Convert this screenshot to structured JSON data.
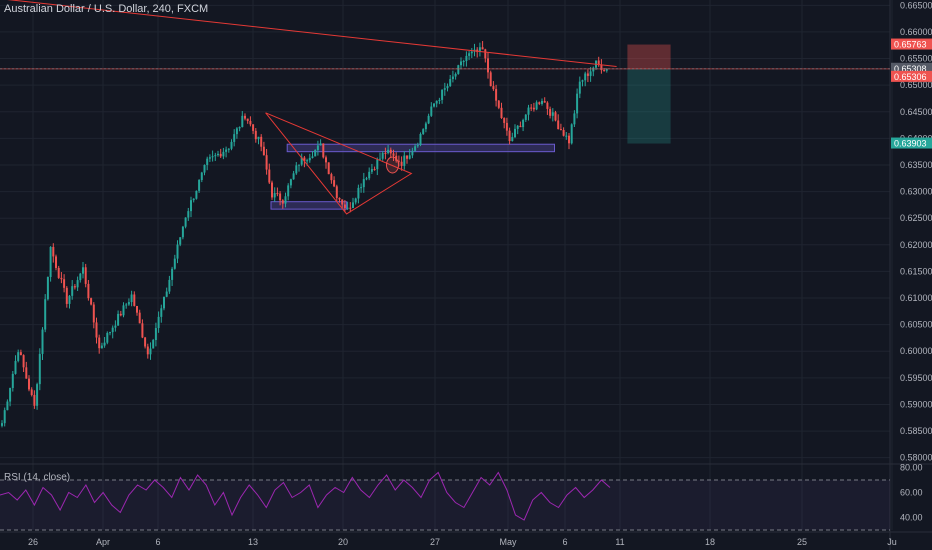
{
  "header": {
    "title": "Australian Dollar / U.S. Dollar, 240, FXCM"
  },
  "rsi": {
    "label": "RSI (14, close)"
  },
  "colors": {
    "background": "#131722",
    "grid": "#1f2430",
    "up": "#26a69a",
    "down": "#ef5350",
    "trendline": "#e53935",
    "zone": "#6a5acd",
    "rsi_line": "#9c27b0",
    "axis_text": "#b2b5be"
  },
  "chart_data": [
    {
      "type": "candlestick",
      "title": "Australian Dollar / U.S. Dollar, 240, FXCM",
      "xlabel": "",
      "ylabel": "",
      "x_ticks": [
        "26",
        "Apr",
        "6",
        "13",
        "20",
        "27",
        "May",
        "6",
        "11",
        "18",
        "25",
        "Ju"
      ],
      "y_ticks": [
        0.58,
        0.585,
        0.59,
        0.595,
        0.6,
        0.605,
        0.61,
        0.615,
        0.62,
        0.625,
        0.63,
        0.635,
        0.64,
        0.645,
        0.65,
        0.655,
        0.66,
        0.665
      ],
      "ylim": [
        0.579,
        0.666
      ],
      "price_labels": [
        {
          "text": "0.65763",
          "value": 0.65763,
          "color": "#ef5350"
        },
        {
          "text": "0.65308",
          "value": 0.65308,
          "color": "#555a66"
        },
        {
          "text": "0.65306",
          "value": 0.65306,
          "color": "#ef5350"
        },
        {
          "text": "0.63903",
          "value": 0.63903,
          "color": "#26a69a"
        }
      ],
      "close_path": [
        [
          0,
          0.5865
        ],
        [
          6,
          0.6005
        ],
        [
          12,
          0.5895
        ],
        [
          18,
          0.6195
        ],
        [
          24,
          0.6095
        ],
        [
          30,
          0.6155
        ],
        [
          36,
          0.6005
        ],
        [
          42,
          0.6055
        ],
        [
          48,
          0.6105
        ],
        [
          54,
          0.5995
        ],
        [
          60,
          0.6095
        ],
        [
          68,
          0.6255
        ],
        [
          76,
          0.6355
        ],
        [
          84,
          0.6385
        ],
        [
          90,
          0.6445
        ],
        [
          96,
          0.6385
        ],
        [
          100,
          0.6295
        ],
        [
          104,
          0.6285
        ],
        [
          110,
          0.6355
        ],
        [
          118,
          0.6385
        ],
        [
          124,
          0.6295
        ],
        [
          128,
          0.6265
        ],
        [
          134,
          0.6325
        ],
        [
          142,
          0.6375
        ],
        [
          148,
          0.6355
        ],
        [
          154,
          0.6395
        ],
        [
          160,
          0.6465
        ],
        [
          166,
          0.6505
        ],
        [
          172,
          0.6555
        ],
        [
          178,
          0.6565
        ],
        [
          182,
          0.6485
        ],
        [
          188,
          0.6395
        ],
        [
          194,
          0.6445
        ],
        [
          200,
          0.6475
        ],
        [
          206,
          0.6425
        ],
        [
          210,
          0.6395
        ],
        [
          214,
          0.6505
        ],
        [
          220,
          0.654
        ],
        [
          224,
          0.653
        ]
      ],
      "annotations": {
        "upper_trendline": [
          [
            -5,
            0.6665
          ],
          [
            228,
            0.6535
          ]
        ],
        "triangle": [
          [
            98,
            0.6448
          ],
          [
            128,
            0.6258
          ],
          [
            152,
            0.6334
          ]
        ],
        "zones": [
          {
            "x1": 100,
            "x2": 128,
            "low": 0.6267,
            "high": 0.6281
          },
          {
            "x1": 106,
            "x2": 205,
            "low": 0.6375,
            "high": 0.6389
          }
        ],
        "ellipse": {
          "x": 145,
          "y": 0.635
        },
        "position": {
          "x1": 232,
          "x2": 248,
          "stop": 0.65763,
          "entry": 0.65306,
          "target": 0.63903
        }
      }
    },
    {
      "type": "line",
      "title": "RSI (14, close)",
      "y_ticks": [
        40,
        60,
        80
      ],
      "ylim": [
        30,
        82
      ],
      "bands": [
        30,
        70
      ],
      "series": [
        {
          "values": [
            58,
            60,
            54,
            62,
            50,
            64,
            58,
            46,
            60,
            56,
            66,
            52,
            60,
            50,
            44,
            58,
            66,
            62,
            70,
            64,
            56,
            72,
            62,
            74,
            66,
            50,
            60,
            42,
            56,
            66,
            58,
            48,
            62,
            68,
            56,
            60,
            66,
            48,
            58,
            64,
            60,
            72,
            62,
            56,
            66,
            74,
            62,
            70,
            64,
            56,
            70,
            76,
            60,
            52,
            48,
            60,
            72,
            66,
            76,
            62,
            42,
            38,
            54,
            60,
            52,
            48,
            58,
            64,
            56,
            62,
            70,
            64
          ]
        }
      ]
    }
  ]
}
